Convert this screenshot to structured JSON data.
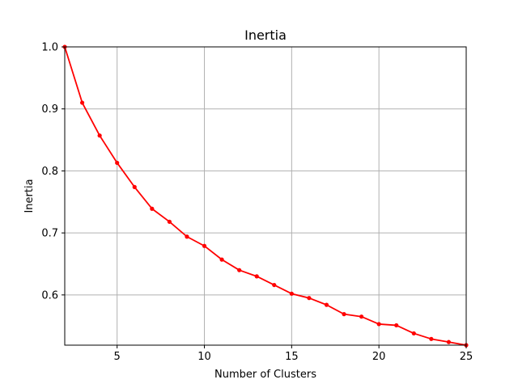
{
  "chart_data": {
    "type": "line",
    "title": "Inertia",
    "xlabel": "Number of Clusters",
    "ylabel": "Inertia",
    "xlim": [
      2,
      25
    ],
    "ylim": [
      0.519,
      1.0
    ],
    "grid": true,
    "x_ticks": [
      5,
      10,
      15,
      20,
      25
    ],
    "y_ticks": [
      0.6,
      0.7,
      0.8,
      0.9,
      1.0
    ],
    "x_tick_labels": [
      "5",
      "10",
      "15",
      "20",
      "25"
    ],
    "y_tick_labels": [
      "0.6",
      "0.7",
      "0.8",
      "0.9",
      "1.0"
    ],
    "series": [
      {
        "color": "#ff0000",
        "marker": "circle",
        "x": [
          2,
          3,
          4,
          5,
          6,
          7,
          8,
          9,
          10,
          11,
          12,
          13,
          14,
          15,
          16,
          17,
          18,
          19,
          20,
          21,
          22,
          23,
          24,
          25
        ],
        "y": [
          1.0,
          0.91,
          0.857,
          0.813,
          0.774,
          0.739,
          0.718,
          0.694,
          0.679,
          0.657,
          0.64,
          0.63,
          0.616,
          0.602,
          0.595,
          0.584,
          0.569,
          0.565,
          0.553,
          0.551,
          0.538,
          0.529,
          0.524,
          0.519
        ]
      }
    ]
  }
}
